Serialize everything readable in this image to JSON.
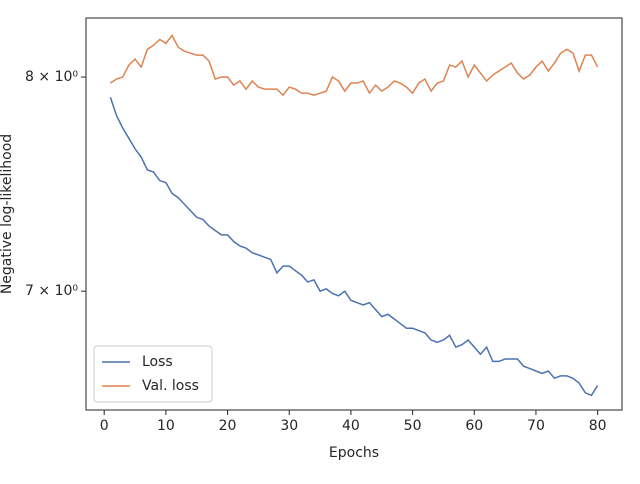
{
  "chart_data": {
    "type": "line",
    "xlabel": "Epochs",
    "ylabel": "Negative log-likelihood",
    "yscale": "log",
    "legend": "lower left",
    "x": [
      1,
      2,
      3,
      4,
      5,
      6,
      7,
      8,
      9,
      10,
      11,
      12,
      13,
      14,
      15,
      16,
      17,
      18,
      19,
      20,
      21,
      22,
      23,
      24,
      25,
      26,
      27,
      28,
      29,
      30,
      31,
      32,
      33,
      34,
      35,
      36,
      37,
      38,
      39,
      40,
      41,
      42,
      43,
      44,
      45,
      46,
      47,
      48,
      49,
      50,
      51,
      52,
      53,
      54,
      55,
      56,
      57,
      58,
      59,
      60,
      61,
      62,
      63,
      64,
      65,
      66,
      67,
      68,
      69,
      70,
      71,
      72,
      73,
      74,
      75,
      76,
      77,
      78,
      79,
      80
    ],
    "series": [
      {
        "name": "Loss",
        "color": "#4c72b0",
        "values": [
          7.9,
          7.81,
          7.75,
          7.7,
          7.65,
          7.61,
          7.55,
          7.54,
          7.5,
          7.49,
          7.44,
          7.42,
          7.39,
          7.36,
          7.33,
          7.32,
          7.29,
          7.27,
          7.25,
          7.25,
          7.22,
          7.2,
          7.19,
          7.17,
          7.16,
          7.15,
          7.14,
          7.08,
          7.11,
          7.11,
          7.09,
          7.07,
          7.04,
          7.05,
          7.0,
          7.01,
          6.99,
          6.98,
          7.0,
          6.96,
          6.95,
          6.94,
          6.95,
          6.92,
          6.89,
          6.9,
          6.88,
          6.86,
          6.84,
          6.84,
          6.83,
          6.82,
          6.79,
          6.78,
          6.79,
          6.81,
          6.76,
          6.77,
          6.79,
          6.76,
          6.73,
          6.76,
          6.7,
          6.7,
          6.71,
          6.71,
          6.71,
          6.68,
          6.67,
          6.66,
          6.65,
          6.66,
          6.63,
          6.64,
          6.64,
          6.63,
          6.61,
          6.57,
          6.56,
          6.6
        ]
      },
      {
        "name": "Val. loss",
        "color": "#dd8452",
        "values": [
          7.97,
          7.99,
          8.0,
          8.06,
          8.09,
          8.05,
          8.14,
          8.16,
          8.19,
          8.17,
          8.21,
          8.15,
          8.13,
          8.12,
          8.11,
          8.11,
          8.08,
          7.99,
          8.0,
          8.0,
          7.96,
          7.98,
          7.94,
          7.98,
          7.95,
          7.94,
          7.94,
          7.94,
          7.91,
          7.95,
          7.94,
          7.92,
          7.92,
          7.91,
          7.92,
          7.93,
          8.0,
          7.98,
          7.93,
          7.97,
          7.97,
          7.98,
          7.92,
          7.96,
          7.93,
          7.95,
          7.98,
          7.97,
          7.95,
          7.92,
          7.97,
          7.99,
          7.93,
          7.97,
          7.98,
          8.06,
          8.05,
          8.08,
          8.0,
          8.06,
          8.02,
          7.98,
          8.01,
          8.03,
          8.05,
          8.07,
          8.02,
          7.99,
          8.01,
          8.05,
          8.08,
          8.03,
          8.07,
          8.12,
          8.14,
          8.12,
          8.03,
          8.11,
          8.11,
          8.05
        ]
      }
    ],
    "xlim": [
      -2.95,
      83.95
    ],
    "xticks": [
      0,
      10,
      20,
      30,
      40,
      50,
      60,
      70,
      80
    ],
    "ylim": [
      6.5,
      8.3
    ],
    "yticks": [
      {
        "value": 7,
        "label": "7 × 10⁰"
      },
      {
        "value": 8,
        "label": "8 × 10⁰"
      }
    ]
  }
}
